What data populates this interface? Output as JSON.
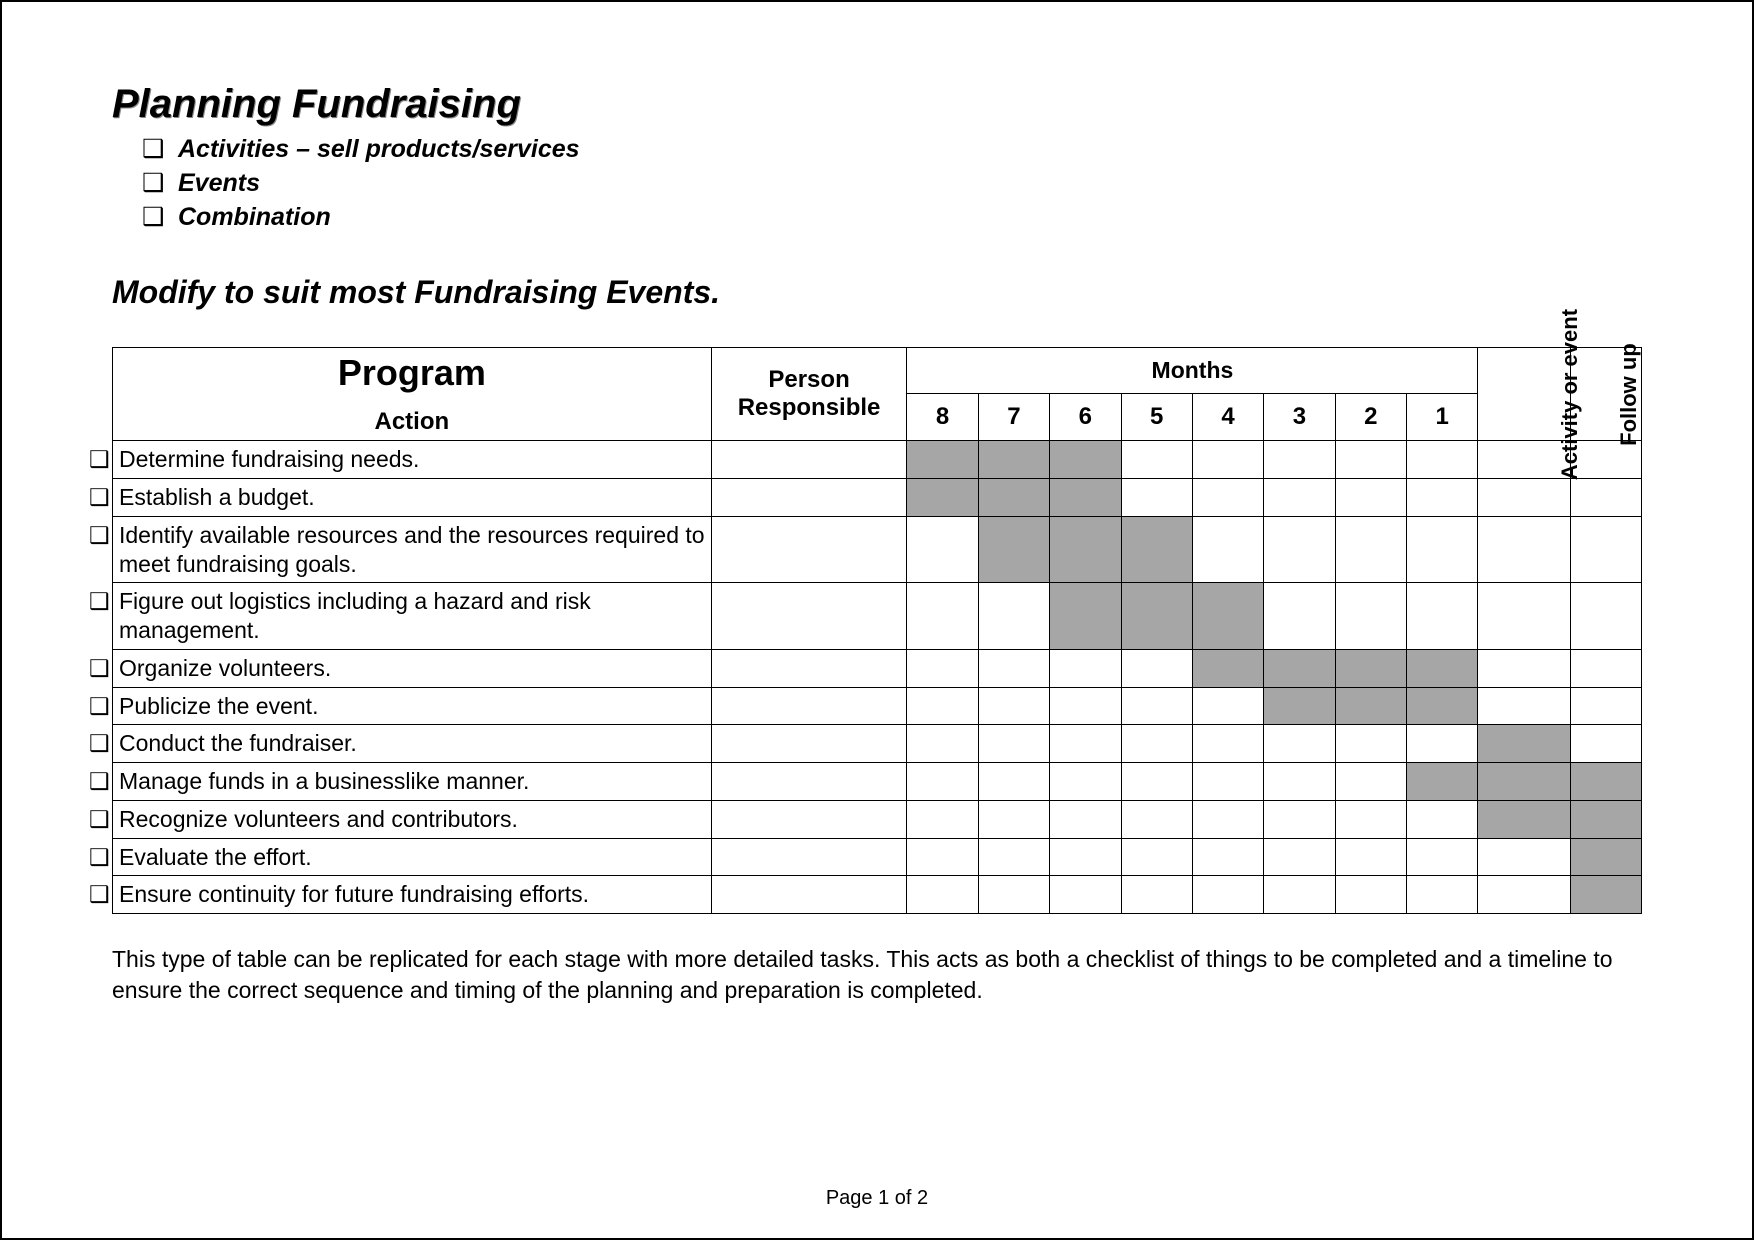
{
  "title": "Planning Fundraising",
  "type_list": [
    "Activities – sell products/services",
    "Events",
    "Combination"
  ],
  "subtitle": "Modify to suit most Fundraising Events.",
  "table": {
    "header": {
      "program_line1": "Program",
      "program_line2": "Action",
      "person": "Person Responsible",
      "months_label": "Months",
      "month_numbers": [
        "8",
        "7",
        "6",
        "5",
        "4",
        "3",
        "2",
        "1"
      ],
      "activity_label": "Activity or event",
      "followup_label": "Follow up"
    },
    "shaded_color": "#a6a6a6",
    "rows": [
      {
        "action": "Determine fundraising needs.",
        "shaded": [
          0,
          1,
          2
        ]
      },
      {
        "action": "Establish a budget.",
        "shaded": [
          0,
          1,
          2
        ]
      },
      {
        "action": "Identify available resources and the resources required to meet fundraising goals.",
        "shaded": [
          1,
          2,
          3
        ]
      },
      {
        "action": "Figure out logistics including a hazard and risk management.",
        "shaded": [
          2,
          3,
          4
        ]
      },
      {
        "action": "Organize volunteers.",
        "shaded": [
          4,
          5,
          6,
          7
        ]
      },
      {
        "action": "Publicize the event.",
        "shaded": [
          5,
          6,
          7
        ]
      },
      {
        "action": "Conduct the fundraiser.",
        "shaded": [
          8
        ]
      },
      {
        "action": "Manage funds in a businesslike manner.",
        "shaded": [
          7,
          8,
          9
        ]
      },
      {
        "action": "Recognize volunteers and contributors.",
        "shaded": [
          8,
          9
        ]
      },
      {
        "action": "Evaluate the effort.",
        "shaded": [
          9
        ]
      },
      {
        "action": "Ensure continuity for future fundraising efforts.",
        "shaded": [
          9
        ]
      }
    ]
  },
  "footer_note": "This type of table can be replicated for each stage with more detailed tasks.  This acts as both a checklist of things to be completed and a timeline to ensure the correct sequence and timing of the planning and preparation is completed.",
  "page_number": "Page 1 of 2"
}
